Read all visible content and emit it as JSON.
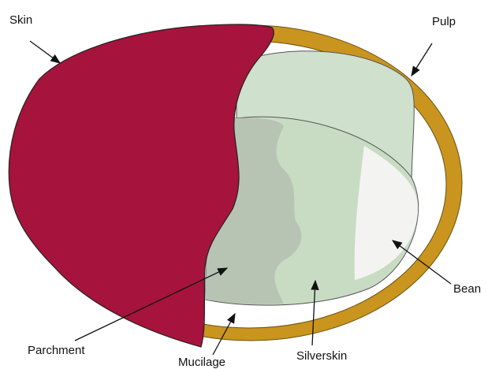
{
  "labels": {
    "skin": "Skin",
    "pulp": "Pulp",
    "bean": "Bean",
    "parchment": "Parchment",
    "mucilage": "Mucilage",
    "silverskin": "Silverskin"
  }
}
